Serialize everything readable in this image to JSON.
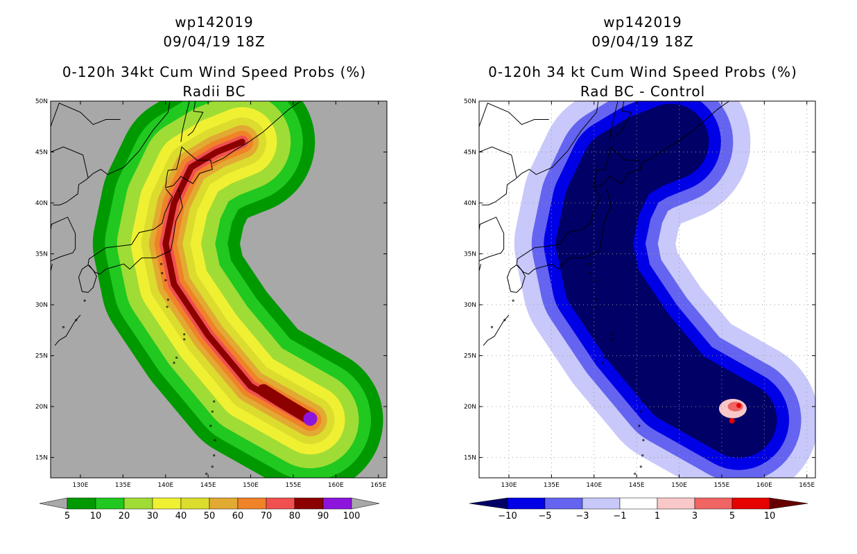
{
  "chart_data": [
    {
      "type": "filled-contour-map",
      "storm_id": "wp142019",
      "datetime": "09/04/19 18Z",
      "title": "0-120h 34kt Cum Wind Speed Probs (%)",
      "subtitle": "Radii BC",
      "x_ticks": [
        "130E",
        "135E",
        "140E",
        "145E",
        "150E",
        "155E",
        "160E",
        "165E"
      ],
      "y_ticks": [
        "50N",
        "45N",
        "40N",
        "35N",
        "30N",
        "25N",
        "20N",
        "15N"
      ],
      "xlim": [
        126.5,
        166
      ],
      "ylim": [
        13,
        50
      ],
      "background": "#a8a8a8",
      "levels": [
        5,
        10,
        20,
        30,
        40,
        50,
        60,
        70,
        80,
        90,
        100
      ],
      "colors": [
        "#009a00",
        "#20c820",
        "#a0dc36",
        "#f0f032",
        "#dcdc2e",
        "#e2aa32",
        "#f08228",
        "#f05050",
        "#8c0000",
        "#8c14dc"
      ],
      "colorbar_labels": [
        "5",
        "10",
        "20",
        "30",
        "40",
        "50",
        "60",
        "70",
        "80",
        "90",
        "100"
      ],
      "track_center": [
        [
          157.0,
          18.7
        ],
        [
          150.0,
          22.0
        ],
        [
          145.0,
          27.0
        ],
        [
          141.0,
          32.0
        ],
        [
          140.0,
          36.0
        ],
        [
          141.0,
          40.0
        ],
        [
          143.0,
          43.5
        ],
        [
          146.0,
          45.0
        ],
        [
          149.0,
          46.0
        ]
      ]
    },
    {
      "type": "filled-contour-map",
      "storm_id": "wp142019",
      "datetime": "09/04/19 18Z",
      "title": "0-120h 34 kt Cum Wind Speed Probs (%)",
      "subtitle": "Rad BC - Control",
      "x_ticks": [
        "130E",
        "135E",
        "140E",
        "145E",
        "150E",
        "155E",
        "160E",
        "165E"
      ],
      "y_ticks": [
        "50N",
        "45N",
        "40N",
        "35N",
        "30N",
        "25N",
        "20N",
        "15N"
      ],
      "xlim": [
        126.5,
        166
      ],
      "ylim": [
        13,
        50
      ],
      "background": "#ffffff",
      "levels": [
        -10,
        -5,
        -3,
        -1,
        1,
        3,
        5,
        10
      ],
      "colors": [
        "#000066",
        "#0000e6",
        "#6464f0",
        "#c8c8fa",
        "#ffffff",
        "#fac8c8",
        "#f06464",
        "#e60000",
        "#660000"
      ],
      "colorbar_labels": [
        "-10",
        "-5",
        "-3",
        "-1",
        "1",
        "3",
        "5",
        "10"
      ]
    }
  ]
}
